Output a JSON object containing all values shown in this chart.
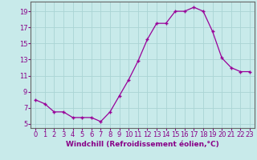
{
  "x": [
    0,
    1,
    2,
    3,
    4,
    5,
    6,
    7,
    8,
    9,
    10,
    11,
    12,
    13,
    14,
    15,
    16,
    17,
    18,
    19,
    20,
    21,
    22,
    23
  ],
  "y": [
    8.0,
    7.5,
    6.5,
    6.5,
    5.8,
    5.8,
    5.8,
    5.3,
    6.5,
    8.5,
    10.5,
    12.8,
    15.5,
    17.5,
    17.5,
    19.0,
    19.0,
    19.5,
    19.0,
    16.5,
    13.2,
    12.0,
    11.5,
    11.5
  ],
  "xlim": [
    -0.5,
    23.5
  ],
  "ylim": [
    4.5,
    20.2
  ],
  "yticks": [
    5,
    7,
    9,
    11,
    13,
    15,
    17,
    19
  ],
  "xticks": [
    0,
    1,
    2,
    3,
    4,
    5,
    6,
    7,
    8,
    9,
    10,
    11,
    12,
    13,
    14,
    15,
    16,
    17,
    18,
    19,
    20,
    21,
    22,
    23
  ],
  "xlabel": "Windchill (Refroidissement éolien,°C)",
  "line_color": "#990099",
  "marker": "+",
  "bg_color": "#c8eaea",
  "grid_color": "#aad4d4",
  "axis_color": "#666666",
  "text_color": "#880088",
  "xlabel_fontsize": 6.5,
  "tick_fontsize": 6.0
}
